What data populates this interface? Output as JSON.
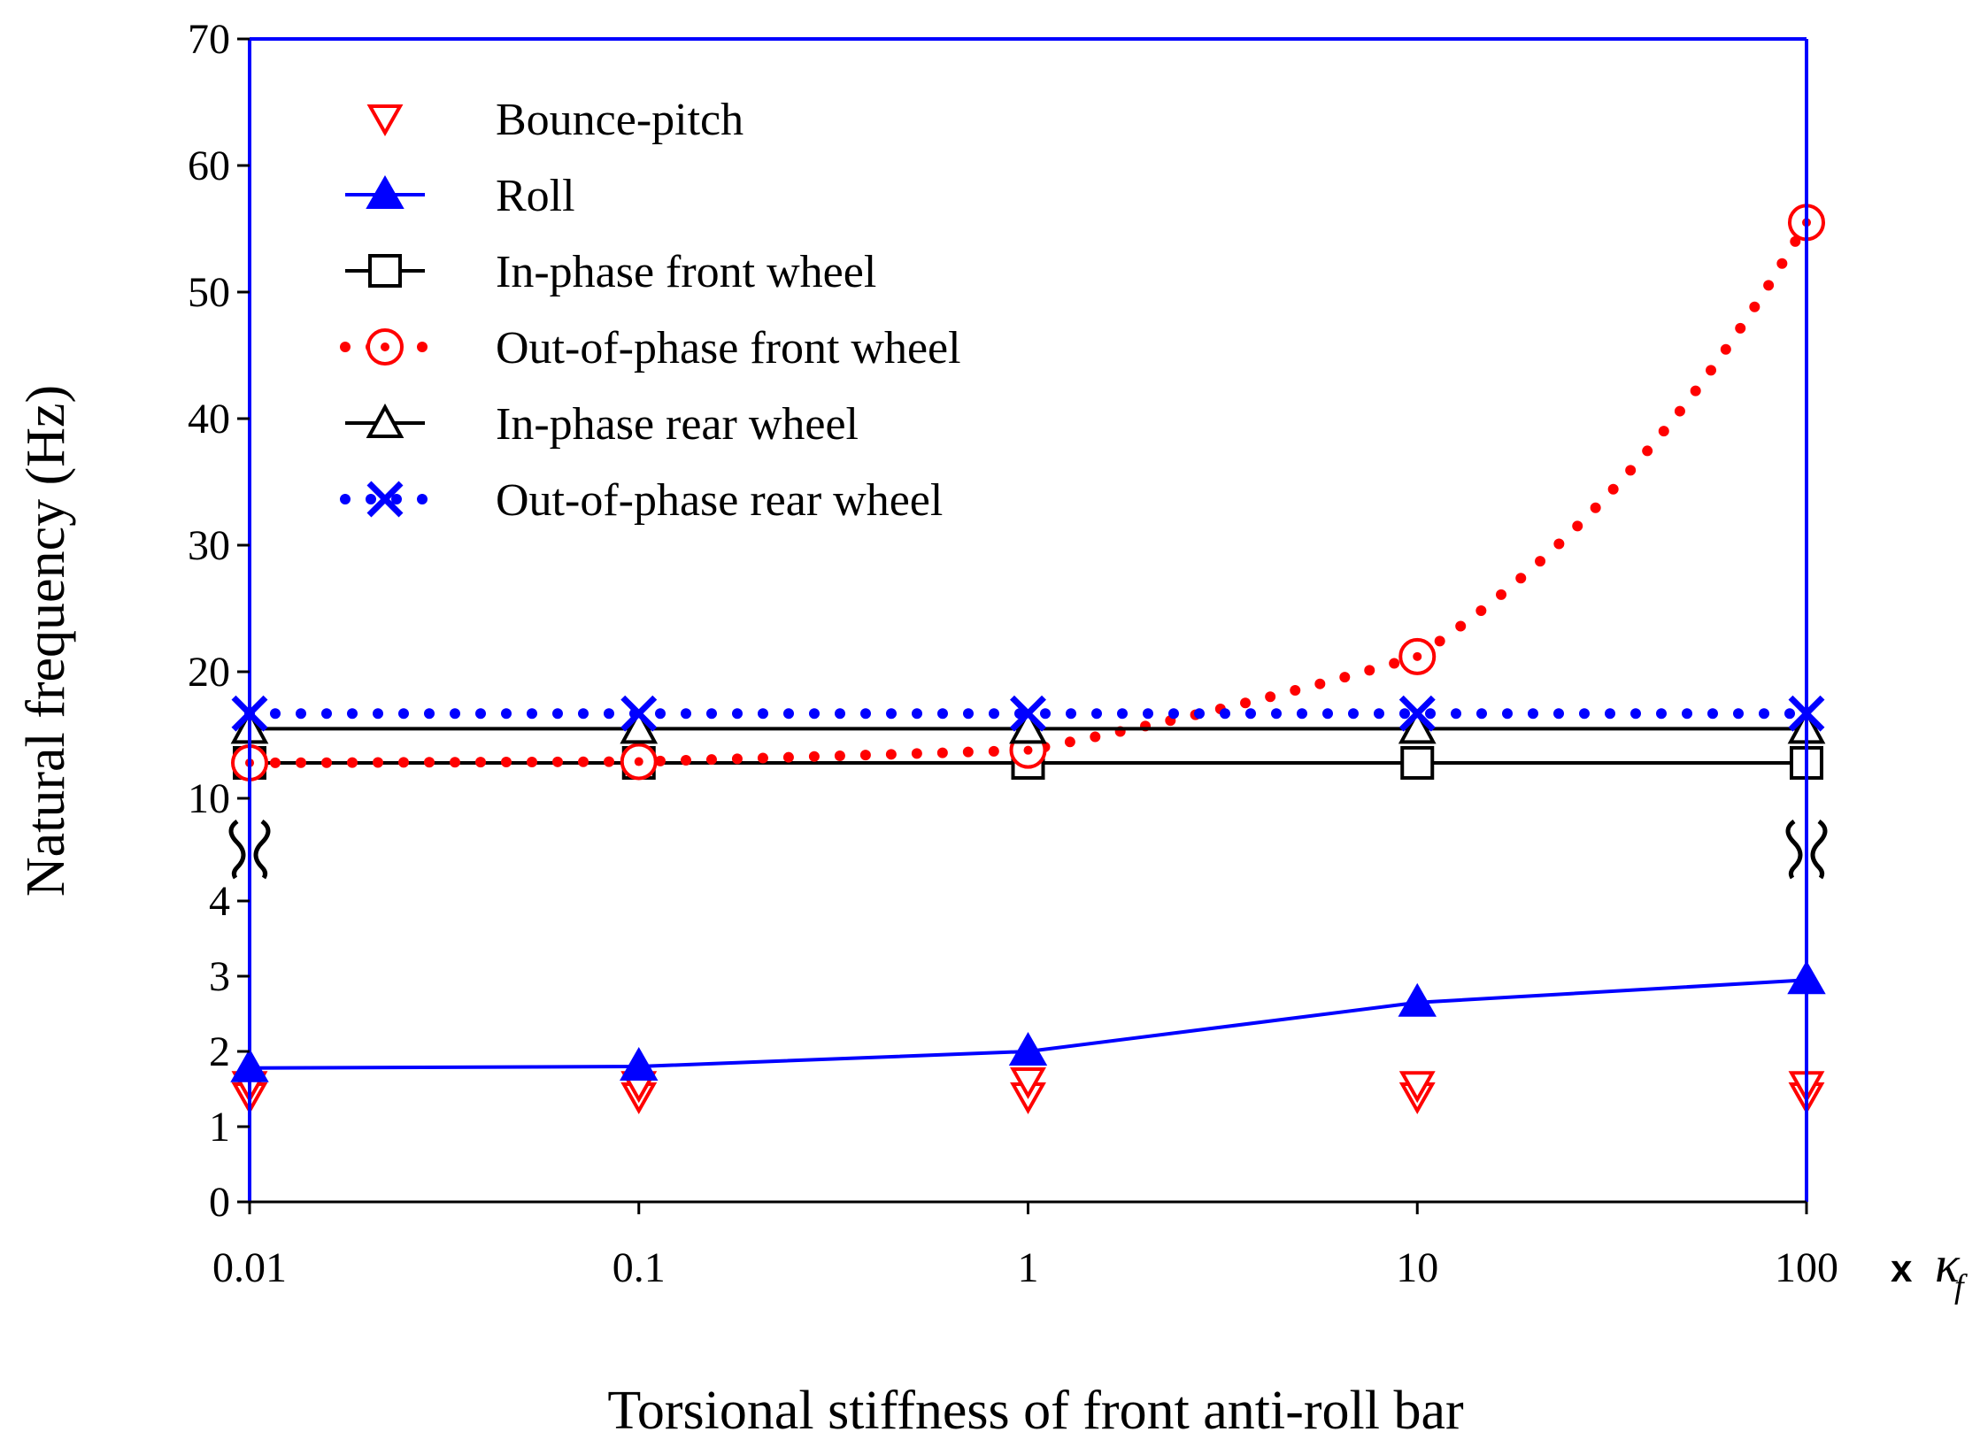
{
  "chart_data": {
    "type": "line",
    "title": "",
    "xlabel": "Torsional stiffness of front anti-roll bar",
    "ylabel": "Natural frequency (Hz)",
    "x_scale": "log",
    "x_suffix": "x",
    "x_suffix_symbol": "κ",
    "x_suffix_subscript": "f",
    "x": [
      0.01,
      0.1,
      1,
      10,
      100
    ],
    "x_tick_labels": [
      "0.01",
      "0.1",
      "1",
      "10",
      "100"
    ],
    "y_axis_break": true,
    "y_lower_range": [
      0,
      4
    ],
    "y_upper_range": [
      10,
      70
    ],
    "y_tick_labels": [
      "0",
      "1",
      "2",
      "3",
      "4",
      "10",
      "20",
      "30",
      "40",
      "50",
      "60",
      "70"
    ],
    "series": [
      {
        "name": "Bounce-pitch",
        "x": [
          0.01,
          0.01,
          0.1,
          0.1,
          1,
          1,
          10,
          10,
          100,
          100
        ],
        "values": [
          1.4,
          1.55,
          1.4,
          1.55,
          1.4,
          1.6,
          1.4,
          1.55,
          1.4,
          1.55
        ],
        "color": "#ff0000",
        "line": "none",
        "marker": "triangle-down-open"
      },
      {
        "name": "Roll",
        "x": [
          0.01,
          0.1,
          1,
          10,
          100
        ],
        "values": [
          1.78,
          1.8,
          2.0,
          2.65,
          2.95
        ],
        "color": "#0000ff",
        "line": "solid",
        "marker": "triangle-up-filled"
      },
      {
        "name": "In-phase front wheel",
        "x": [
          0.01,
          0.1,
          1,
          10,
          100
        ],
        "values": [
          12.8,
          12.8,
          12.8,
          12.8,
          12.8
        ],
        "color": "#000000",
        "line": "solid",
        "marker": "square-open"
      },
      {
        "name": "Out-of-phase front wheel",
        "x": [
          0.01,
          0.1,
          1,
          10,
          100
        ],
        "values": [
          12.8,
          12.9,
          13.8,
          21.2,
          55.5
        ],
        "color": "#ff0000",
        "line": "dotted",
        "marker": "circle-dot"
      },
      {
        "name": "In-phase rear wheel",
        "x": [
          0.01,
          0.1,
          1,
          10,
          100
        ],
        "values": [
          15.5,
          15.5,
          15.5,
          15.5,
          15.5
        ],
        "color": "#000000",
        "line": "solid",
        "marker": "triangle-up-open"
      },
      {
        "name": "Out-of-phase rear wheel",
        "x": [
          0.01,
          0.1,
          1,
          10,
          100
        ],
        "values": [
          16.7,
          16.7,
          16.7,
          16.7,
          16.7
        ],
        "color": "#0000ff",
        "line": "dotted",
        "marker": "x"
      }
    ],
    "legend_position": "top-left",
    "grid": false
  }
}
